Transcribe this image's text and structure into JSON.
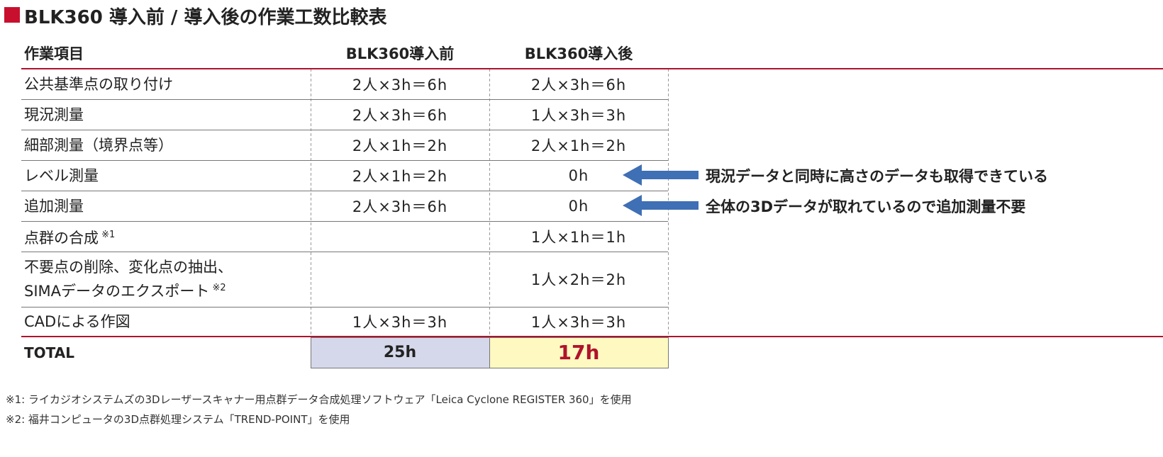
{
  "title": "BLK360 導入前 / 導入後の作業工数比較表",
  "table": {
    "header": [
      "作業項目",
      "BLK360導入前",
      "BLK360導入後"
    ],
    "rows": [
      {
        "item": [
          "公共基準点の取り付け"
        ],
        "before": "2人×3h＝6h",
        "after": "2人×3h＝6h"
      },
      {
        "item": [
          "現況測量"
        ],
        "before": "2人×3h＝6h",
        "after": "1人×3h＝3h"
      },
      {
        "item": [
          "細部測量（境界点等）"
        ],
        "before": "2人×1h＝2h",
        "after": "2人×1h＝2h"
      },
      {
        "item": [
          "レベル測量"
        ],
        "before": "2人×1h＝2h",
        "after": "0h"
      },
      {
        "item": [
          "追加測量"
        ],
        "before": "2人×3h＝6h",
        "after": "0h"
      },
      {
        "item": [
          "点群の合成"
        ],
        "note": "※1",
        "after": "1人×1h＝1h"
      },
      {
        "item": [
          "不要点の削除、変化点の抽出、",
          "SIMAデータのエクスポート"
        ],
        "note": "※2",
        "after": "1人×2h＝2h"
      },
      {
        "item": [
          "CADによる作図"
        ],
        "before": "1人×3h＝3h",
        "after": "1人×3h＝3h"
      }
    ],
    "total": {
      "label": "TOTAL",
      "before": "25h",
      "after": "17h"
    }
  },
  "annotations": [
    {
      "row": 3,
      "text": "現況データと同時に高さのデータも取得できている"
    },
    {
      "row": 4,
      "text": "全体の3Dデータが取れているので追加測量不要"
    }
  ],
  "footnotes": [
    "※1: ライカジオシステムズの3Dレーザースキャナー用点群データ合成処理ソフトウェア「Leica Cyclone REGISTER 360」を使用",
    "※2: 福井コンピュータの3D点群処理システム「TREND-POINT」を使用"
  ]
}
